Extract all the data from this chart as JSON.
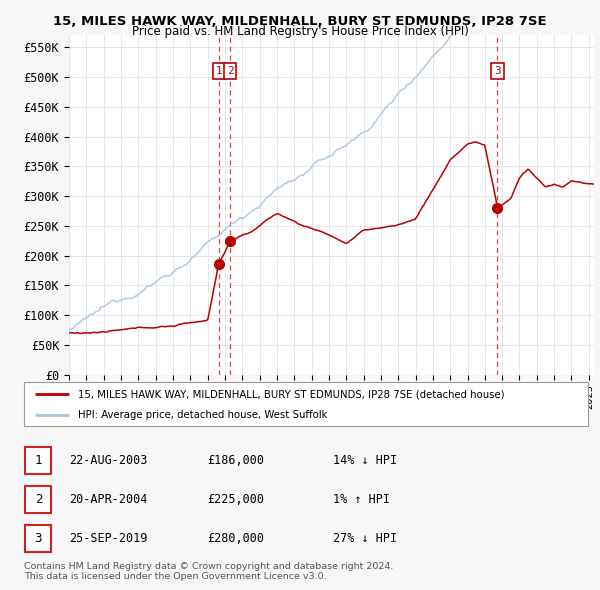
{
  "title_line1": "15, MILES HAWK WAY, MILDENHALL, BURY ST EDMUNDS, IP28 7SE",
  "title_line2": "Price paid vs. HM Land Registry's House Price Index (HPI)",
  "ylabel_ticks": [
    "£0",
    "£50K",
    "£100K",
    "£150K",
    "£200K",
    "£250K",
    "£300K",
    "£350K",
    "£400K",
    "£450K",
    "£500K",
    "£550K"
  ],
  "ytick_vals": [
    0,
    50000,
    100000,
    150000,
    200000,
    250000,
    300000,
    350000,
    400000,
    450000,
    500000,
    550000
  ],
  "xlim_start": 1995.0,
  "xlim_end": 2025.3,
  "ylim": [
    0,
    570000
  ],
  "hpi_color": "#aac4e0",
  "price_color": "#bb0000",
  "vline_color": "#dd4444",
  "bg_color": "#f5f5f5",
  "plot_bg": "#ffffff",
  "sale_points": [
    {
      "year": 2003.64,
      "price": 186000,
      "label": "1"
    },
    {
      "year": 2004.3,
      "price": 225000,
      "label": "2"
    },
    {
      "year": 2019.73,
      "price": 280000,
      "label": "3"
    }
  ],
  "legend_label_red": "15, MILES HAWK WAY, MILDENHALL, BURY ST EDMUNDS, IP28 7SE (detached house)",
  "legend_label_blue": "HPI: Average price, detached house, West Suffolk",
  "table_rows": [
    {
      "num": "1",
      "date": "22-AUG-2003",
      "price": "£186,000",
      "hpi": "14% ↓ HPI"
    },
    {
      "num": "2",
      "date": "20-APR-2004",
      "price": "£225,000",
      "hpi": "1% ↑ HPI"
    },
    {
      "num": "3",
      "date": "25-SEP-2019",
      "price": "£280,000",
      "hpi": "27% ↓ HPI"
    }
  ],
  "footer": "Contains HM Land Registry data © Crown copyright and database right 2024.\nThis data is licensed under the Open Government Licence v3.0."
}
